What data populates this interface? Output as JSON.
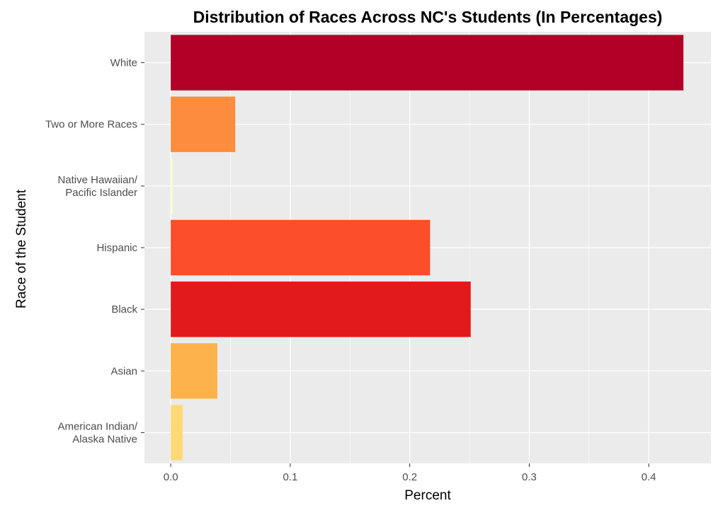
{
  "chart_data": {
    "type": "bar",
    "orientation": "horizontal",
    "title": "Distribution of Races Across NC's Students (In Percentages)",
    "xlabel": "Percent",
    "ylabel": "Race of the Student",
    "xlim": [
      -0.022,
      0.452
    ],
    "xticks": [
      0.0,
      0.1,
      0.2,
      0.3,
      0.4
    ],
    "xtick_labels": [
      "0.0",
      "0.1",
      "0.2",
      "0.3",
      "0.4"
    ],
    "grid": true,
    "categories": [
      [
        "American Indian/",
        "Alaska Native"
      ],
      [
        "Asian"
      ],
      [
        "Black"
      ],
      [
        "Hispanic"
      ],
      [
        "Native Hawaiian/",
        "Pacific Islander"
      ],
      [
        "Two or More Races"
      ],
      [
        "White"
      ]
    ],
    "values": [
      0.01,
      0.039,
      0.251,
      0.217,
      0.0015,
      0.054,
      0.429
    ],
    "colors": [
      "#FED976",
      "#FEB24C",
      "#E31A1C",
      "#FC4E2A",
      "#FFFFCC",
      "#FD8D3C",
      "#B10026"
    ],
    "panel_background": "#EBEBEB",
    "grid_color": "#FFFFFF"
  }
}
